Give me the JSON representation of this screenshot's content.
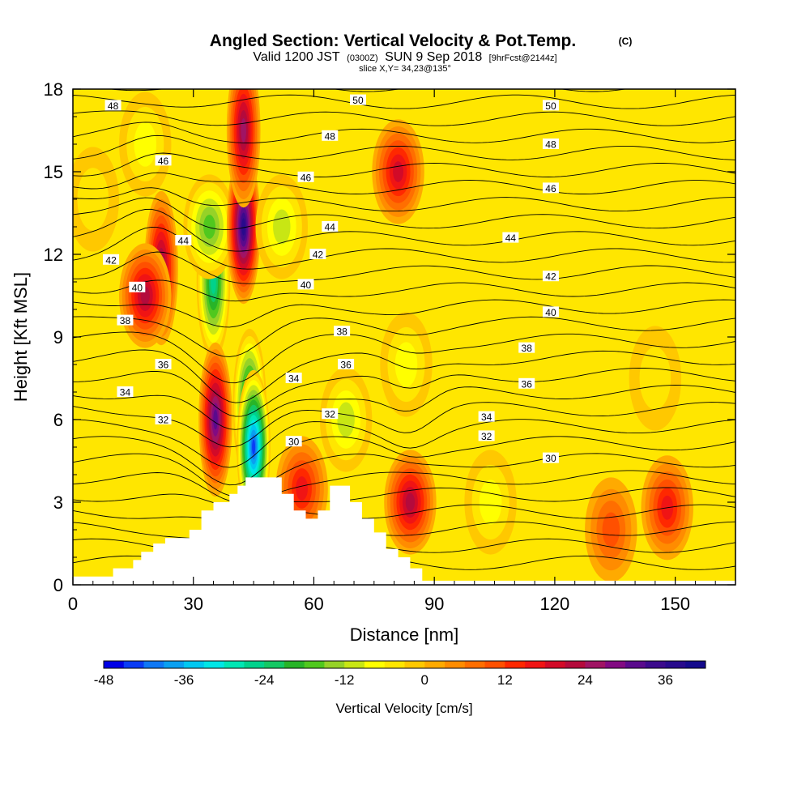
{
  "header": {
    "title": "Angled Section: Vertical Velocity & Pot.Temp.",
    "title_unit": "(C)",
    "valid_prefix": "Valid 1200 JST",
    "valid_utc": "(0300Z)",
    "valid_date": "SUN 9 Sep 2018",
    "forecast": "[9hrFcst@2144z]",
    "slice": "slice X,Y= 34,23@135°"
  },
  "chart_data": {
    "type": "heatmap",
    "title": "Angled Section: Vertical Velocity & Pot.Temp.",
    "xlabel": "Distance [nm]",
    "ylabel": "Height [Kft MSL]",
    "xlim": [
      0,
      165
    ],
    "ylim": [
      0,
      18
    ],
    "xticks": [
      "0",
      "30",
      "60",
      "90",
      "120",
      "150"
    ],
    "yticks": [
      "0",
      "3",
      "6",
      "9",
      "12",
      "15",
      "18"
    ],
    "colorbar": {
      "label": "Vertical Velocity [cm/s]",
      "tick_labels": [
        "-48",
        "-36",
        "-24",
        "-12",
        "0",
        "12",
        "24",
        "36"
      ],
      "min": -48,
      "max": 42,
      "step": 3,
      "colors": [
        "#0000e6",
        "#0a3cf5",
        "#0f78f5",
        "#0aa0f0",
        "#00c8f0",
        "#00e6e6",
        "#00e6b4",
        "#00d28c",
        "#14c864",
        "#28b428",
        "#50c81e",
        "#96d228",
        "#c8e614",
        "#ffff00",
        "#ffe600",
        "#ffc800",
        "#ffaa00",
        "#ff8c00",
        "#ff6e00",
        "#ff5000",
        "#ff2800",
        "#f01414",
        "#d20a28",
        "#b40a3c",
        "#a01464",
        "#820a82",
        "#5a0a8c",
        "#3c0a8c",
        "#280a8c",
        "#140a8c"
      ]
    },
    "features": [
      {
        "x": 22,
        "y": 11.5,
        "value": 27
      },
      {
        "x": 18,
        "y": 10.5,
        "value": 24
      },
      {
        "x": 35,
        "y": 11.0,
        "value": -27
      },
      {
        "x": 34,
        "y": 13.0,
        "value": -18
      },
      {
        "x": 42.5,
        "y": 13.0,
        "value": 38
      },
      {
        "x": 42.5,
        "y": 16.5,
        "value": 28
      },
      {
        "x": 52,
        "y": 13.0,
        "value": -12
      },
      {
        "x": 44,
        "y": 6.5,
        "value": -30
      },
      {
        "x": 45,
        "y": 5.0,
        "value": -45
      },
      {
        "x": 35.5,
        "y": 6.0,
        "value": 34
      },
      {
        "x": 81,
        "y": 15.0,
        "value": 20
      },
      {
        "x": 83,
        "y": 8.0,
        "value": -10
      },
      {
        "x": 84,
        "y": 3.0,
        "value": 24
      },
      {
        "x": 57,
        "y": 3.5,
        "value": 18
      },
      {
        "x": 68,
        "y": 6.0,
        "value": -12
      },
      {
        "x": 104,
        "y": 3.0,
        "value": -10
      },
      {
        "x": 145,
        "y": 7.5,
        "value": -6
      },
      {
        "x": 134,
        "y": 2.0,
        "value": 12
      },
      {
        "x": 148,
        "y": 2.8,
        "value": 18
      },
      {
        "x": 5,
        "y": 14.0,
        "value": -5
      },
      {
        "x": 18,
        "y": 16.0,
        "value": -8
      }
    ],
    "contours_label": "Pot.Temp. (C)",
    "isentrope_labels": [
      {
        "text": "48",
        "x": 10,
        "y": 17.4
      },
      {
        "text": "46",
        "x": 22.5,
        "y": 15.4
      },
      {
        "text": "44",
        "x": 27.5,
        "y": 12.5
      },
      {
        "text": "42",
        "x": 9.5,
        "y": 11.8
      },
      {
        "text": "40",
        "x": 16,
        "y": 10.8
      },
      {
        "text": "38",
        "x": 13,
        "y": 9.6
      },
      {
        "text": "36",
        "x": 22.5,
        "y": 8.0
      },
      {
        "text": "34",
        "x": 13,
        "y": 7.0
      },
      {
        "text": "32",
        "x": 22.5,
        "y": 6.0
      },
      {
        "text": "50",
        "x": 71,
        "y": 17.6
      },
      {
        "text": "48",
        "x": 64,
        "y": 16.3
      },
      {
        "text": "46",
        "x": 58,
        "y": 14.8
      },
      {
        "text": "44",
        "x": 64,
        "y": 13.0
      },
      {
        "text": "42",
        "x": 61,
        "y": 12.0
      },
      {
        "text": "40",
        "x": 58,
        "y": 10.9
      },
      {
        "text": "38",
        "x": 67,
        "y": 9.2
      },
      {
        "text": "36",
        "x": 68,
        "y": 8.0
      },
      {
        "text": "34",
        "x": 55,
        "y": 7.5
      },
      {
        "text": "32",
        "x": 64,
        "y": 6.2
      },
      {
        "text": "30",
        "x": 55,
        "y": 5.2
      },
      {
        "text": "50",
        "x": 119,
        "y": 17.4
      },
      {
        "text": "48",
        "x": 119,
        "y": 16.0
      },
      {
        "text": "46",
        "x": 119,
        "y": 14.4
      },
      {
        "text": "44",
        "x": 109,
        "y": 12.6
      },
      {
        "text": "42",
        "x": 119,
        "y": 11.2
      },
      {
        "text": "40",
        "x": 119,
        "y": 9.9
      },
      {
        "text": "38",
        "x": 113,
        "y": 8.6
      },
      {
        "text": "36",
        "x": 113,
        "y": 7.3
      },
      {
        "text": "34",
        "x": 103,
        "y": 6.1
      },
      {
        "text": "32",
        "x": 103,
        "y": 5.4
      },
      {
        "text": "30",
        "x": 119,
        "y": 4.6
      }
    ],
    "terrain": [
      [
        0,
        0.3
      ],
      [
        10,
        0.3
      ],
      [
        10,
        0.6
      ],
      [
        15,
        0.6
      ],
      [
        15,
        0.9
      ],
      [
        17,
        0.9
      ],
      [
        17,
        1.2
      ],
      [
        20,
        1.2
      ],
      [
        20,
        1.5
      ],
      [
        23,
        1.5
      ],
      [
        23,
        1.7
      ],
      [
        29,
        1.7
      ],
      [
        29,
        2.0
      ],
      [
        32,
        2.0
      ],
      [
        32,
        2.7
      ],
      [
        35,
        2.7
      ],
      [
        35,
        3.0
      ],
      [
        39,
        3.0
      ],
      [
        39,
        3.3
      ],
      [
        41,
        3.3
      ],
      [
        41,
        3.6
      ],
      [
        43,
        3.6
      ],
      [
        43,
        3.9
      ],
      [
        52,
        3.9
      ],
      [
        52,
        3.3
      ],
      [
        55,
        3.3
      ],
      [
        55,
        2.7
      ],
      [
        58,
        2.7
      ],
      [
        58,
        2.4
      ],
      [
        61,
        2.4
      ],
      [
        61,
        2.7
      ],
      [
        64,
        2.7
      ],
      [
        64,
        3.6
      ],
      [
        69,
        3.6
      ],
      [
        69,
        3.0
      ],
      [
        72,
        3.0
      ],
      [
        72,
        2.4
      ],
      [
        75,
        2.4
      ],
      [
        75,
        1.9
      ],
      [
        78,
        1.9
      ],
      [
        78,
        1.3
      ],
      [
        81,
        1.3
      ],
      [
        81,
        1.0
      ],
      [
        84,
        1.0
      ],
      [
        84,
        0.6
      ],
      [
        87,
        0.6
      ],
      [
        87,
        0.3
      ]
    ]
  }
}
